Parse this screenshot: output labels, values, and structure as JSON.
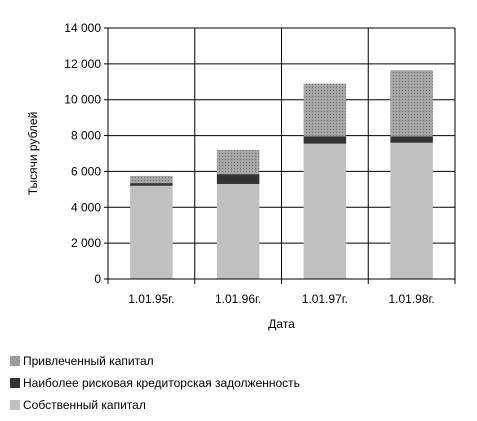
{
  "chart_data": {
    "type": "bar",
    "stacked": true,
    "categories": [
      "1.01.95г.",
      "1.01.96г.",
      "1.01.97г.",
      "1.01.98г."
    ],
    "series": [
      {
        "name": "Собственный капитал",
        "values": [
          5200,
          5300,
          7550,
          7600
        ],
        "color": "#c0c0c0",
        "pattern": "solid"
      },
      {
        "name": "Наиболее рисковая кредиторская задолженность",
        "values": [
          150,
          550,
          400,
          350
        ],
        "color": "#333333",
        "pattern": "solid"
      },
      {
        "name": "Привлеченный капитал",
        "values": [
          400,
          1350,
          2950,
          3700
        ],
        "color": "#a6a6a6",
        "pattern": "dotted"
      }
    ],
    "xlabel": "Дата",
    "ylabel": "Тысячи рублей",
    "ylim": [
      0,
      14000
    ],
    "yticks": [
      0,
      2000,
      4000,
      6000,
      8000,
      10000,
      12000,
      14000
    ],
    "ytick_labels": [
      "0",
      "2 000",
      "4 000",
      "6 000",
      "8 000",
      "10 000",
      "12 000",
      "14 000"
    ],
    "grid": "major horizontal and vertical",
    "legend_position": "bottom-left"
  }
}
